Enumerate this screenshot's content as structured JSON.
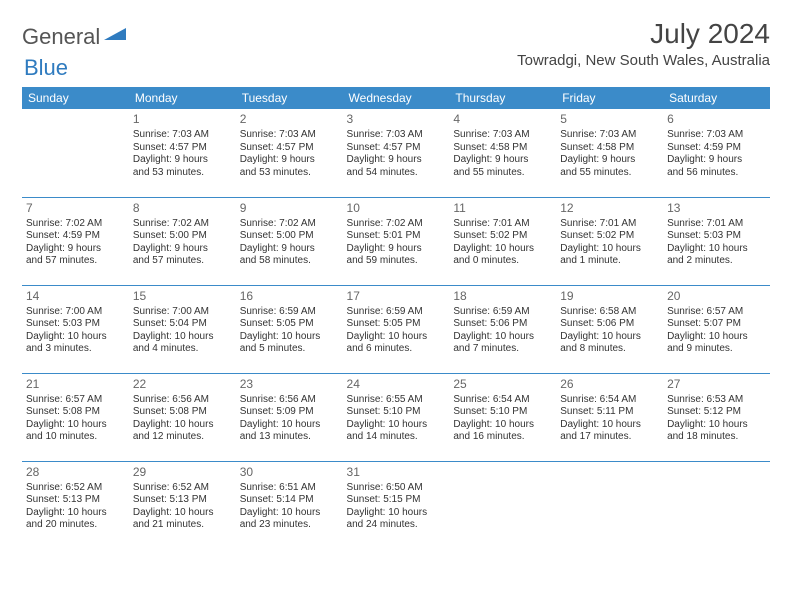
{
  "logo": {
    "general": "General",
    "blue": "Blue"
  },
  "title": "July 2024",
  "location": "Towradgi, New South Wales, Australia",
  "colors": {
    "header_bg": "#3b8bc9",
    "header_text": "#ffffff",
    "accent": "#2f7bbf",
    "text": "#333333",
    "daynum": "#666666",
    "border": "#3b8bc9",
    "background": "#ffffff"
  },
  "weekdays": [
    "Sunday",
    "Monday",
    "Tuesday",
    "Wednesday",
    "Thursday",
    "Friday",
    "Saturday"
  ],
  "weeks": [
    [
      null,
      {
        "n": "1",
        "sr": "Sunrise: 7:03 AM",
        "ss": "Sunset: 4:57 PM",
        "d1": "Daylight: 9 hours",
        "d2": "and 53 minutes."
      },
      {
        "n": "2",
        "sr": "Sunrise: 7:03 AM",
        "ss": "Sunset: 4:57 PM",
        "d1": "Daylight: 9 hours",
        "d2": "and 53 minutes."
      },
      {
        "n": "3",
        "sr": "Sunrise: 7:03 AM",
        "ss": "Sunset: 4:57 PM",
        "d1": "Daylight: 9 hours",
        "d2": "and 54 minutes."
      },
      {
        "n": "4",
        "sr": "Sunrise: 7:03 AM",
        "ss": "Sunset: 4:58 PM",
        "d1": "Daylight: 9 hours",
        "d2": "and 55 minutes."
      },
      {
        "n": "5",
        "sr": "Sunrise: 7:03 AM",
        "ss": "Sunset: 4:58 PM",
        "d1": "Daylight: 9 hours",
        "d2": "and 55 minutes."
      },
      {
        "n": "6",
        "sr": "Sunrise: 7:03 AM",
        "ss": "Sunset: 4:59 PM",
        "d1": "Daylight: 9 hours",
        "d2": "and 56 minutes."
      }
    ],
    [
      {
        "n": "7",
        "sr": "Sunrise: 7:02 AM",
        "ss": "Sunset: 4:59 PM",
        "d1": "Daylight: 9 hours",
        "d2": "and 57 minutes."
      },
      {
        "n": "8",
        "sr": "Sunrise: 7:02 AM",
        "ss": "Sunset: 5:00 PM",
        "d1": "Daylight: 9 hours",
        "d2": "and 57 minutes."
      },
      {
        "n": "9",
        "sr": "Sunrise: 7:02 AM",
        "ss": "Sunset: 5:00 PM",
        "d1": "Daylight: 9 hours",
        "d2": "and 58 minutes."
      },
      {
        "n": "10",
        "sr": "Sunrise: 7:02 AM",
        "ss": "Sunset: 5:01 PM",
        "d1": "Daylight: 9 hours",
        "d2": "and 59 minutes."
      },
      {
        "n": "11",
        "sr": "Sunrise: 7:01 AM",
        "ss": "Sunset: 5:02 PM",
        "d1": "Daylight: 10 hours",
        "d2": "and 0 minutes."
      },
      {
        "n": "12",
        "sr": "Sunrise: 7:01 AM",
        "ss": "Sunset: 5:02 PM",
        "d1": "Daylight: 10 hours",
        "d2": "and 1 minute."
      },
      {
        "n": "13",
        "sr": "Sunrise: 7:01 AM",
        "ss": "Sunset: 5:03 PM",
        "d1": "Daylight: 10 hours",
        "d2": "and 2 minutes."
      }
    ],
    [
      {
        "n": "14",
        "sr": "Sunrise: 7:00 AM",
        "ss": "Sunset: 5:03 PM",
        "d1": "Daylight: 10 hours",
        "d2": "and 3 minutes."
      },
      {
        "n": "15",
        "sr": "Sunrise: 7:00 AM",
        "ss": "Sunset: 5:04 PM",
        "d1": "Daylight: 10 hours",
        "d2": "and 4 minutes."
      },
      {
        "n": "16",
        "sr": "Sunrise: 6:59 AM",
        "ss": "Sunset: 5:05 PM",
        "d1": "Daylight: 10 hours",
        "d2": "and 5 minutes."
      },
      {
        "n": "17",
        "sr": "Sunrise: 6:59 AM",
        "ss": "Sunset: 5:05 PM",
        "d1": "Daylight: 10 hours",
        "d2": "and 6 minutes."
      },
      {
        "n": "18",
        "sr": "Sunrise: 6:59 AM",
        "ss": "Sunset: 5:06 PM",
        "d1": "Daylight: 10 hours",
        "d2": "and 7 minutes."
      },
      {
        "n": "19",
        "sr": "Sunrise: 6:58 AM",
        "ss": "Sunset: 5:06 PM",
        "d1": "Daylight: 10 hours",
        "d2": "and 8 minutes."
      },
      {
        "n": "20",
        "sr": "Sunrise: 6:57 AM",
        "ss": "Sunset: 5:07 PM",
        "d1": "Daylight: 10 hours",
        "d2": "and 9 minutes."
      }
    ],
    [
      {
        "n": "21",
        "sr": "Sunrise: 6:57 AM",
        "ss": "Sunset: 5:08 PM",
        "d1": "Daylight: 10 hours",
        "d2": "and 10 minutes."
      },
      {
        "n": "22",
        "sr": "Sunrise: 6:56 AM",
        "ss": "Sunset: 5:08 PM",
        "d1": "Daylight: 10 hours",
        "d2": "and 12 minutes."
      },
      {
        "n": "23",
        "sr": "Sunrise: 6:56 AM",
        "ss": "Sunset: 5:09 PM",
        "d1": "Daylight: 10 hours",
        "d2": "and 13 minutes."
      },
      {
        "n": "24",
        "sr": "Sunrise: 6:55 AM",
        "ss": "Sunset: 5:10 PM",
        "d1": "Daylight: 10 hours",
        "d2": "and 14 minutes."
      },
      {
        "n": "25",
        "sr": "Sunrise: 6:54 AM",
        "ss": "Sunset: 5:10 PM",
        "d1": "Daylight: 10 hours",
        "d2": "and 16 minutes."
      },
      {
        "n": "26",
        "sr": "Sunrise: 6:54 AM",
        "ss": "Sunset: 5:11 PM",
        "d1": "Daylight: 10 hours",
        "d2": "and 17 minutes."
      },
      {
        "n": "27",
        "sr": "Sunrise: 6:53 AM",
        "ss": "Sunset: 5:12 PM",
        "d1": "Daylight: 10 hours",
        "d2": "and 18 minutes."
      }
    ],
    [
      {
        "n": "28",
        "sr": "Sunrise: 6:52 AM",
        "ss": "Sunset: 5:13 PM",
        "d1": "Daylight: 10 hours",
        "d2": "and 20 minutes."
      },
      {
        "n": "29",
        "sr": "Sunrise: 6:52 AM",
        "ss": "Sunset: 5:13 PM",
        "d1": "Daylight: 10 hours",
        "d2": "and 21 minutes."
      },
      {
        "n": "30",
        "sr": "Sunrise: 6:51 AM",
        "ss": "Sunset: 5:14 PM",
        "d1": "Daylight: 10 hours",
        "d2": "and 23 minutes."
      },
      {
        "n": "31",
        "sr": "Sunrise: 6:50 AM",
        "ss": "Sunset: 5:15 PM",
        "d1": "Daylight: 10 hours",
        "d2": "and 24 minutes."
      },
      null,
      null,
      null
    ]
  ]
}
